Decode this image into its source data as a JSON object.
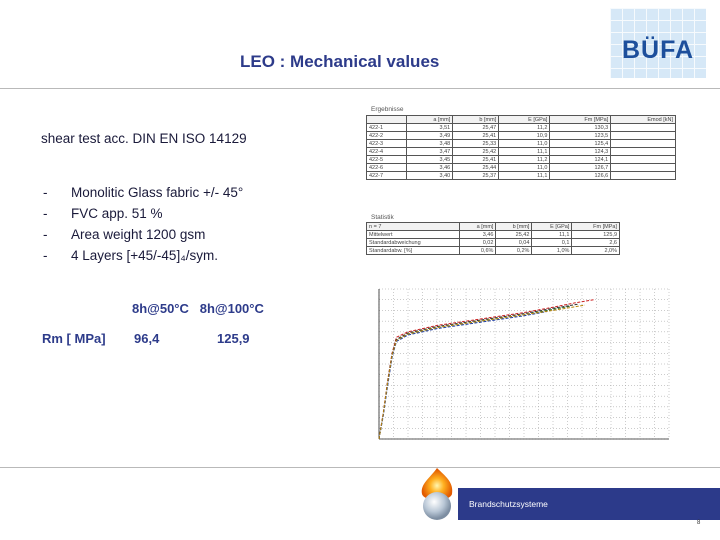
{
  "logo": {
    "text": "BÜFA"
  },
  "title": "LEO : Mechanical values",
  "spec": "shear test acc. DIN EN ISO 14129",
  "bullets": [
    "Monolitic Glass fabric +/- 45°",
    "FVC app. 51 %",
    "Area weight 1200 gsm",
    "4 Layers   [+45/-45]₄/sym."
  ],
  "results": {
    "col1": "8h@50°C",
    "col2": "8h@100°C",
    "row_label": "Rm [ MPa]",
    "val1": "96,4",
    "val2": "125,9"
  },
  "table1": {
    "caption": "Ergebnisse",
    "headers": [
      "",
      "a [mm]",
      "b [mm]",
      "E [GPa]",
      "Fm [MPa]",
      "Emod [kN]"
    ],
    "rows": [
      [
        "422-1",
        "3,51",
        "25,47",
        "11,2",
        "130,3",
        ""
      ],
      [
        "422-2",
        "3,49",
        "25,41",
        "10,9",
        "123,5",
        ""
      ],
      [
        "422-3",
        "3,48",
        "25,33",
        "11,0",
        "125,4",
        ""
      ],
      [
        "422-4",
        "3,47",
        "25,42",
        "11,1",
        "124,3",
        ""
      ],
      [
        "422-5",
        "3,45",
        "25,41",
        "11,2",
        "124,1",
        ""
      ],
      [
        "422-6",
        "3,46",
        "25,44",
        "11,0",
        "126,7",
        ""
      ],
      [
        "422-7",
        "3,40",
        "25,37",
        "11,1",
        "126,6",
        ""
      ]
    ]
  },
  "table2": {
    "caption": "Statistik",
    "headers": [
      "n = 7",
      "a [mm]",
      "b [mm]",
      "E [GPa]",
      "Fm [MPa]"
    ],
    "rows": [
      [
        "Mittelwert",
        "3,46",
        "25,42",
        "11,1",
        "125,9"
      ],
      [
        "Standardabweichung",
        "0,02",
        "0,04",
        "0,1",
        "2,6"
      ],
      [
        "Standardabw. [%]",
        "0,6%",
        "0,2%",
        "1,0%",
        "2,0%"
      ]
    ]
  },
  "chart_data": {
    "type": "line",
    "title": "",
    "xlabel": "",
    "ylabel": "",
    "xlim": [
      0,
      20
    ],
    "ylim": [
      0,
      140
    ],
    "grid": true,
    "series": [
      {
        "color": "#cc2222",
        "x": [
          0,
          0.3,
          0.6,
          0.9,
          1.2,
          2,
          4,
          6,
          8,
          10,
          12,
          13.5,
          14.8
        ],
        "y": [
          0,
          25,
          55,
          80,
          95,
          100,
          106,
          110,
          114,
          118,
          123,
          127,
          130
        ]
      },
      {
        "color": "#2a6a2a",
        "x": [
          0,
          0.3,
          0.6,
          0.9,
          1.2,
          2,
          4,
          6,
          8,
          10,
          12,
          13.2
        ],
        "y": [
          0,
          23,
          52,
          77,
          92,
          98,
          104,
          108,
          112,
          116,
          121,
          124
        ]
      },
      {
        "color": "#333333",
        "x": [
          0,
          0.3,
          0.6,
          0.9,
          1.2,
          2,
          4,
          6,
          8,
          10,
          12,
          13.8
        ],
        "y": [
          0,
          24,
          54,
          79,
          93,
          99,
          105,
          109,
          113,
          117,
          122,
          126
        ]
      },
      {
        "color": "#1f3fa8",
        "x": [
          0,
          0.3,
          0.6,
          0.9,
          1.2,
          2,
          4,
          6,
          8,
          10,
          11.6
        ],
        "y": [
          0,
          22,
          50,
          76,
          91,
          97,
          103,
          107,
          111,
          115,
          119
        ]
      },
      {
        "color": "#b8860b",
        "x": [
          0,
          0.3,
          0.6,
          0.9,
          1.2,
          2,
          4,
          6,
          8,
          10,
          12,
          14.2
        ],
        "y": [
          0,
          24,
          53,
          78,
          92,
          98,
          104,
          108,
          112,
          116,
          120,
          125
        ]
      }
    ]
  },
  "footer": {
    "band_label": "Brandschutzsysteme",
    "page": "8"
  },
  "colors": {
    "accent": "#2c3a8a",
    "title": "#2d3b8a",
    "logo": "#1d4f9c"
  }
}
